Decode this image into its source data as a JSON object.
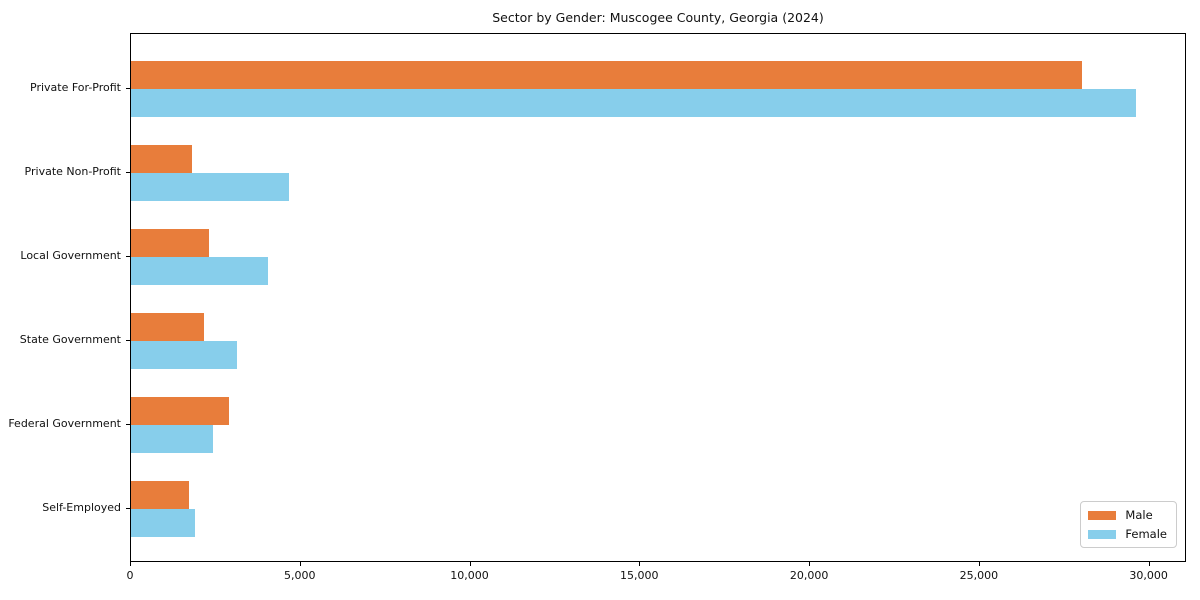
{
  "chart_data": {
    "type": "bar",
    "orientation": "horizontal",
    "title": "Sector by Gender: Muscogee County, Georgia (2024)",
    "categories": [
      "Private For-Profit",
      "Private Non-Profit",
      "Local Government",
      "State Government",
      "Federal Government",
      "Self-Employed"
    ],
    "series": [
      {
        "name": "Male",
        "color": "#E87D3B",
        "values": [
          28000,
          1800,
          2290,
          2150,
          2880,
          1700
        ]
      },
      {
        "name": "Female",
        "color": "#87CEEB",
        "values": [
          29600,
          4650,
          4040,
          3120,
          2410,
          1870
        ]
      }
    ],
    "xlabel": "",
    "ylabel": "",
    "xlim": [
      0,
      31100
    ],
    "xticks": [
      {
        "value": 0,
        "label": "0"
      },
      {
        "value": 5000,
        "label": "5,000"
      },
      {
        "value": 10000,
        "label": "10,000"
      },
      {
        "value": 15000,
        "label": "15,000"
      },
      {
        "value": 20000,
        "label": "20,000"
      },
      {
        "value": 25000,
        "label": "25,000"
      },
      {
        "value": 30000,
        "label": "30,000"
      }
    ],
    "grid": false,
    "legend_position": "lower right"
  }
}
